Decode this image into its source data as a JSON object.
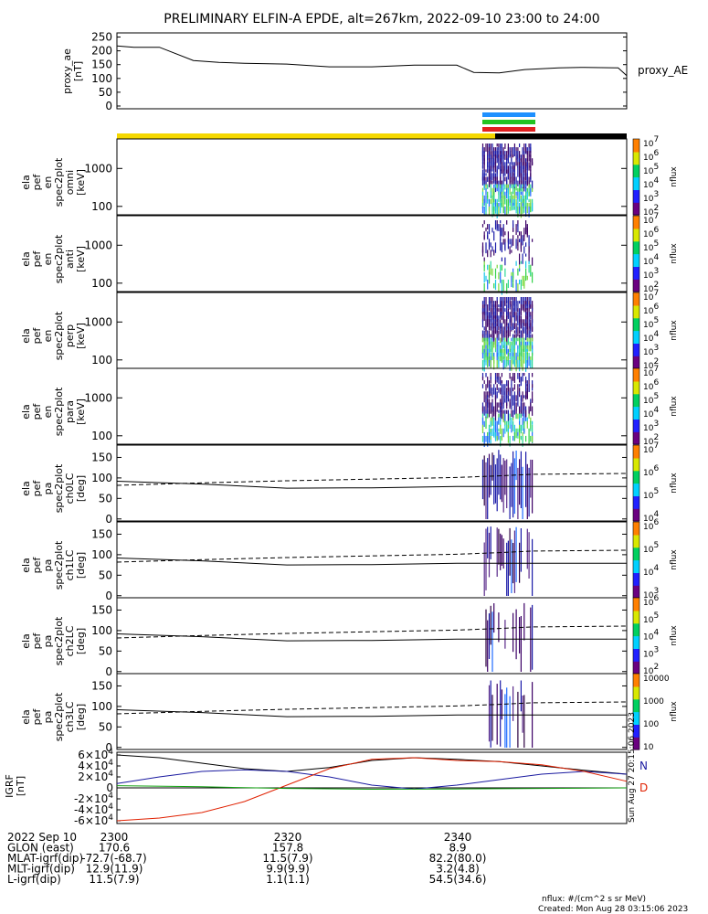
{
  "title": "PRELIMINARY ELFIN-A EPDE, alt=267km, 2022-09-10 23:00 to 24:00",
  "colors": {
    "yellow_bar": "#f5d800",
    "black_bar": "#000000",
    "blue_strip": "#1e90ff",
    "green_strip": "#22c422",
    "red_strip": "#e02020",
    "igrf_n": "#1a1aa0",
    "igrf_d": "#e02000",
    "igrf_total": "#000000",
    "igrf_green": "#10a010"
  },
  "ae_panel": {
    "ylabel_lines": [
      "proxy_ae",
      "[nT]"
    ],
    "legend": "proxy_AE"
  },
  "spec_panels": [
    {
      "ylabel_lines": [
        "ela",
        "pef",
        "en",
        "spec2plot",
        "omni",
        "[keV]"
      ],
      "cbar_label": "nflux"
    },
    {
      "ylabel_lines": [
        "ela",
        "pef",
        "en",
        "spec2plot",
        "anti",
        "[keV]"
      ],
      "cbar_label": "nflux"
    },
    {
      "ylabel_lines": [
        "ela",
        "pef",
        "en",
        "spec2plot",
        "perp",
        "[keV]"
      ],
      "cbar_label": "nflux"
    },
    {
      "ylabel_lines": [
        "ela",
        "pef",
        "en",
        "spec2plot",
        "para",
        "[keV]"
      ],
      "cbar_label": "nflux"
    }
  ],
  "pa_panels": [
    {
      "ylabel_lines": [
        "ela",
        "pef",
        "pa",
        "spec2plot",
        "ch0LC",
        "[deg]"
      ],
      "cbar_label": "nflux"
    },
    {
      "ylabel_lines": [
        "ela",
        "pef",
        "pa",
        "spec2plot",
        "ch1LC",
        "[deg]"
      ],
      "cbar_label": "nflux"
    },
    {
      "ylabel_lines": [
        "ela",
        "pef",
        "pa",
        "spec2plot",
        "ch2LC",
        "[deg]"
      ],
      "cbar_label": "nflux"
    },
    {
      "ylabel_lines": [
        "ela",
        "pef",
        "pa",
        "spec2plot",
        "ch3LC",
        "[deg]"
      ],
      "cbar_label": "nflux"
    }
  ],
  "igrf_panel": {
    "ylabel_lines": [
      "IGRF",
      "[nT]"
    ],
    "legend_n": "N",
    "legend_d": "D",
    "side_stamp": "Sun Aug 27 20:15:06 2023"
  },
  "footer": {
    "rows": [
      {
        "label": "2022 Sep 10",
        "values": [
          "2300",
          "2320",
          "2340"
        ]
      },
      {
        "label": "GLON (east)",
        "values": [
          "170.6",
          "157.8",
          "8.9"
        ]
      },
      {
        "label": "MLAT-igrf(dip)",
        "values": [
          "-72.7(-68.7)",
          "11.5(7.9)",
          "82.2(80.0)"
        ]
      },
      {
        "label": "MLT-igrf(dip)",
        "values": [
          "12.9(11.9)",
          "9.9(9.9)",
          "3.2(4.8)"
        ]
      },
      {
        "label": "L-igrf(dip)",
        "values": [
          "11.5(7.9)",
          "1.1(1.1)",
          "54.5(34.6)"
        ]
      }
    ],
    "units_note": "nflux: #/(cm^2 s sr MeV)",
    "created": "Created: Mon Aug 28 03:15:06 2023"
  },
  "chart_data": [
    {
      "type": "line",
      "name": "proxy_ae",
      "x_unit": "minutes after 23:00",
      "x": [
        0,
        2,
        5,
        9,
        12,
        15,
        20,
        25,
        30,
        35,
        40,
        42,
        45,
        48,
        52,
        55,
        59,
        60
      ],
      "y": [
        218,
        213,
        213,
        165,
        158,
        155,
        152,
        142,
        142,
        148,
        148,
        122,
        120,
        132,
        138,
        140,
        138,
        110
      ],
      "yticks": [
        0,
        50,
        100,
        150,
        200,
        250
      ],
      "ylim": [
        -10,
        265
      ]
    },
    {
      "type": "heatmap",
      "name": "energy spectrograms",
      "y_scale": "log",
      "yticks": [
        100,
        1000
      ],
      "ylim": [
        60,
        6000
      ],
      "active_interval_minutes": [
        43.0,
        49.0
      ],
      "colorbar_ticks": [
        "10^2",
        "10^3",
        "10^4",
        "10^5",
        "10^6",
        "10^7"
      ]
    },
    {
      "type": "line",
      "name": "loss cone (solid) and anti-loss cone (dashed)",
      "x_unit": "minutes after 23:00",
      "x": [
        0,
        10,
        20,
        30,
        40,
        45,
        49,
        60
      ],
      "solid_y": [
        92,
        85,
        75,
        76,
        79,
        79,
        79,
        79
      ],
      "dashed_y": [
        82,
        88,
        93,
        97,
        101,
        105,
        109,
        111
      ],
      "yticks": [
        0,
        50,
        100,
        150
      ],
      "ylim": [
        -5,
        180
      ],
      "colorbar_ticks": [
        [
          "10^4",
          "10^5",
          "10^6",
          "10^7"
        ],
        [
          "10^3",
          "10^4",
          "10^5",
          "10^6"
        ],
        [
          "10^2",
          "10^3",
          "10^4",
          "10^5",
          "10^6"
        ],
        [
          "10",
          "100",
          "1000",
          "10000"
        ]
      ]
    },
    {
      "type": "line",
      "name": "IGRF",
      "x_unit": "minutes after 23:00",
      "yticks": [
        "-6×10^4",
        "-4×10^4",
        "-2×10^4",
        "0",
        "2×10^4",
        "4×10^4",
        "6×10^4"
      ],
      "ylim": [
        -65000,
        65000
      ],
      "series": [
        {
          "name": "",
          "color": "#000000",
          "x": [
            0,
            5,
            10,
            15,
            20,
            25,
            30,
            35,
            40,
            45,
            50,
            55,
            60
          ],
          "y": [
            60000,
            55000,
            45000,
            35000,
            30000,
            37000,
            50000,
            55000,
            52000,
            48000,
            40000,
            32000,
            25000
          ]
        },
        {
          "name": "N",
          "color": "#1a1aa0",
          "x": [
            0,
            5,
            10,
            15,
            20,
            25,
            30,
            35,
            40,
            45,
            50,
            55,
            60
          ],
          "y": [
            8000,
            20000,
            30000,
            33000,
            30000,
            20000,
            5000,
            -2000,
            5000,
            15000,
            25000,
            30000,
            25000
          ]
        },
        {
          "name": "D",
          "color": "#e02000",
          "x": [
            0,
            5,
            10,
            15,
            20,
            25,
            30,
            35,
            40,
            45,
            50,
            55,
            60
          ],
          "y": [
            -60000,
            -55000,
            -45000,
            -25000,
            5000,
            35000,
            52000,
            55000,
            50000,
            48000,
            42000,
            30000,
            12000
          ]
        },
        {
          "name": "",
          "color": "#10a010",
          "x": [
            0,
            10,
            20,
            30,
            40,
            50,
            60
          ],
          "y": [
            4000,
            2000,
            -1000,
            -2500,
            -2000,
            -1000,
            0
          ]
        }
      ]
    }
  ]
}
